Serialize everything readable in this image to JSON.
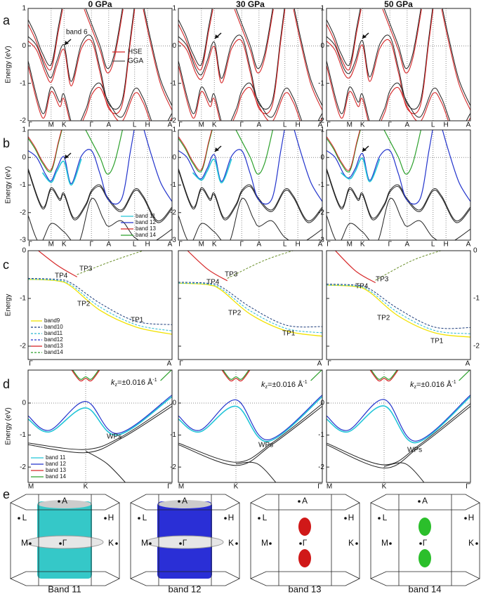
{
  "columns": [
    "0 GPa",
    "30 GPa",
    "50 GPa"
  ],
  "panels": {
    "a": {
      "label": "a",
      "ylabel": "Energy (eV)",
      "yticks": [
        1,
        0,
        -1,
        -2
      ],
      "xlabels": [
        "Γ",
        "M",
        "K",
        "Γ",
        "A",
        "L",
        "H",
        "A"
      ],
      "legend": [
        "HSE",
        "GGA"
      ],
      "annotation": "band 6"
    },
    "b": {
      "label": "b",
      "ylabel": "Energy (eV)",
      "yticks": [
        1,
        0,
        -1,
        -2,
        -3
      ],
      "xlabels": [
        "Γ",
        "M",
        "K",
        "Γ",
        "A",
        "L",
        "H",
        "A"
      ],
      "legend": [
        "band 11",
        "band 12",
        "band 13",
        "band 14"
      ]
    },
    "c": {
      "label": "c",
      "ylabel": "Energy",
      "yticks": [
        0,
        -1,
        -2
      ],
      "xlabels": [
        "Γ",
        "A"
      ],
      "legend": [
        "band9",
        "band10",
        "band11",
        "band12",
        "band13",
        "band14"
      ],
      "points": [
        "TP1",
        "TP2",
        "TP3",
        "TP4"
      ]
    },
    "d": {
      "label": "d",
      "ylabel": "Energy (eV)",
      "yticks": [
        0,
        -1,
        -2
      ],
      "xlabels": [
        "M̄",
        "K̄",
        "Γ̄"
      ],
      "legend": [
        "band 11",
        "band 12",
        "band 13",
        "band 14"
      ],
      "kz": {
        "k": "k",
        "sub": "z",
        "rest": "=±0.016 Å",
        "sup": "-1"
      },
      "annotation": "WPs"
    },
    "e": {
      "label": "e",
      "points": [
        "A",
        "L",
        "H",
        "M",
        "Γ",
        "K"
      ],
      "captions": [
        "Band 11",
        "band 12",
        "band 13",
        "band 14"
      ]
    }
  }
}
